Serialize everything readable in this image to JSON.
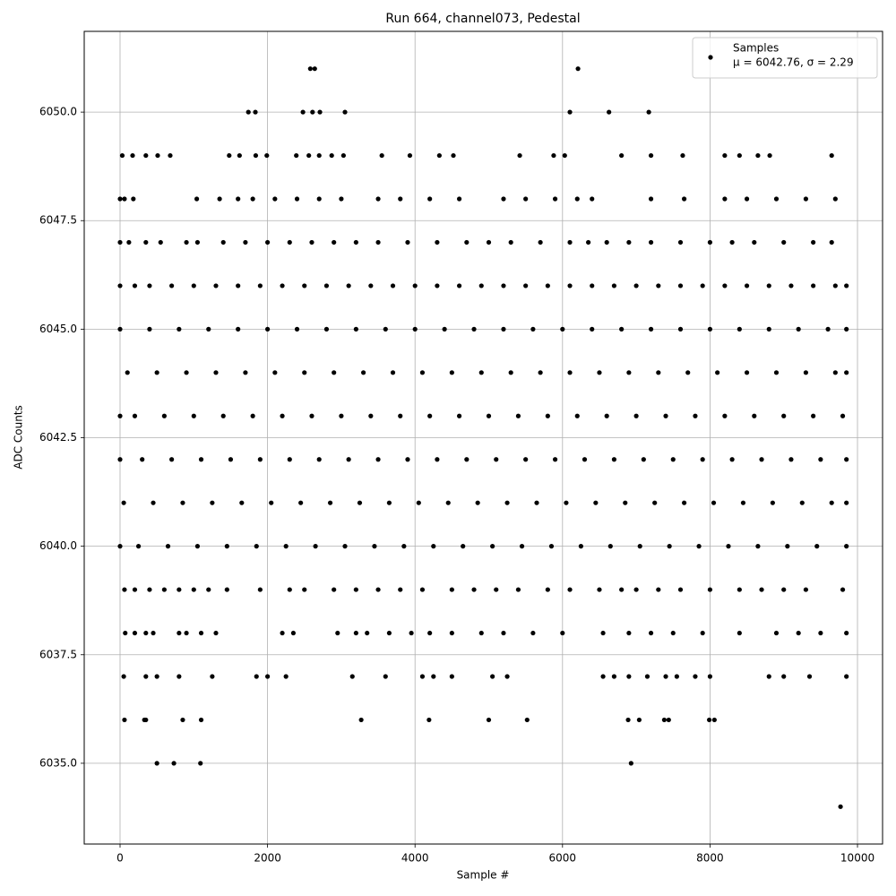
{
  "chart_data": {
    "type": "scatter",
    "title": "Run 664, channel073, Pedestal",
    "x_label": "Sample #",
    "y_label": "ADC Counts",
    "xlim": [
      -486,
      10340
    ],
    "ylim": [
      6033.14,
      6051.86
    ],
    "xticks": [
      0,
      2000,
      4000,
      6000,
      8000,
      10000
    ],
    "yticks": [
      {
        "value": 6035,
        "label": "6035.0"
      },
      {
        "value": 6037.5,
        "label": "6037.5"
      },
      {
        "value": 6040,
        "label": "6040.0"
      },
      {
        "value": 6042.5,
        "label": "6042.5"
      },
      {
        "value": 6045,
        "label": "6045.0"
      },
      {
        "value": 6047.5,
        "label": "6047.5"
      },
      {
        "value": 6050,
        "label": "6050.0"
      }
    ],
    "grid": true,
    "legend": "upper right",
    "legend_note": "μ = 6042.76, σ = 2.29",
    "series": [
      {
        "name": "Samples",
        "color": "#000000",
        "x": [
          2580,
          2640,
          6210,
          1740,
          1835,
          2480,
          2610,
          2710,
          3050,
          6100,
          6630,
          7170,
          30,
          170,
          350,
          510,
          680,
          1480,
          1620,
          1840,
          1990,
          2390,
          2560,
          2700,
          2870,
          3030,
          3550,
          3930,
          4330,
          4520,
          5420,
          5880,
          6030,
          6800,
          7200,
          7630,
          8200,
          8400,
          8650,
          8810,
          9650,
          0,
          60,
          180,
          1040,
          1350,
          1600,
          1800,
          2100,
          2400,
          2700,
          3000,
          3500,
          3800,
          4200,
          4600,
          5200,
          5500,
          5900,
          6200,
          6400,
          7200,
          7650,
          8200,
          8500,
          8900,
          9300,
          9700,
          0,
          120,
          350,
          550,
          900,
          1050,
          1400,
          1700,
          2000,
          2300,
          2600,
          2900,
          3200,
          3500,
          3900,
          4300,
          4700,
          5000,
          5300,
          5700,
          6100,
          6350,
          6600,
          6900,
          7200,
          7600,
          8000,
          8300,
          8600,
          9000,
          9400,
          9650,
          0,
          200,
          400,
          700,
          1000,
          1300,
          1600,
          1900,
          2200,
          2500,
          2800,
          3100,
          3400,
          3700,
          4000,
          4300,
          4600,
          4900,
          5200,
          5500,
          5800,
          6100,
          6400,
          6700,
          7000,
          7300,
          7600,
          7900,
          8200,
          8500,
          8800,
          9100,
          9400,
          9700,
          9850,
          0,
          400,
          800,
          1200,
          1600,
          2000,
          2400,
          2800,
          3200,
          3600,
          4000,
          4400,
          4800,
          5200,
          5600,
          6000,
          6400,
          6800,
          7200,
          7600,
          8000,
          8400,
          8800,
          9200,
          9600,
          9850,
          100,
          500,
          900,
          1300,
          1700,
          2100,
          2500,
          2900,
          3300,
          3700,
          4100,
          4500,
          4900,
          5300,
          5700,
          6100,
          6500,
          6900,
          7300,
          7700,
          8100,
          8500,
          8900,
          9300,
          9700,
          9850,
          0,
          200,
          600,
          1000,
          1400,
          1800,
          2200,
          2600,
          3000,
          3400,
          3800,
          4200,
          4600,
          5000,
          5400,
          5800,
          6200,
          6600,
          7000,
          7400,
          7800,
          8200,
          8600,
          9000,
          9400,
          9800,
          0,
          300,
          700,
          1100,
          1500,
          1900,
          2300,
          2700,
          3100,
          3500,
          3900,
          4300,
          4700,
          5100,
          5500,
          5900,
          6300,
          6700,
          7100,
          7500,
          7900,
          8300,
          8700,
          9100,
          9500,
          9850,
          50,
          450,
          850,
          1250,
          1650,
          2050,
          2450,
          2850,
          3250,
          3650,
          4050,
          4450,
          4850,
          5250,
          5650,
          6050,
          6450,
          6850,
          7250,
          7650,
          8050,
          8450,
          8850,
          9250,
          9650,
          9850,
          0,
          250,
          650,
          1050,
          1450,
          1850,
          2250,
          2650,
          3050,
          3450,
          3850,
          4250,
          4650,
          5050,
          5450,
          5850,
          6250,
          6650,
          7050,
          7450,
          7850,
          8250,
          8650,
          9050,
          9450,
          9850,
          60,
          200,
          400,
          600,
          800,
          1000,
          1200,
          1450,
          1900,
          2300,
          2500,
          2900,
          3200,
          3500,
          3800,
          4100,
          4500,
          4800,
          5100,
          5400,
          5800,
          6100,
          6500,
          6800,
          7000,
          7300,
          7600,
          8000,
          8400,
          8700,
          9000,
          9300,
          9800,
          70,
          200,
          350,
          450,
          800,
          900,
          1100,
          1300,
          2200,
          2350,
          2950,
          3200,
          3350,
          3650,
          3950,
          4200,
          4500,
          4900,
          5200,
          5600,
          6000,
          6550,
          6900,
          7200,
          7500,
          7900,
          8400,
          8900,
          9200,
          9500,
          9850,
          50,
          350,
          500,
          800,
          1250,
          1850,
          2000,
          2250,
          3150,
          3600,
          4100,
          4250,
          4500,
          5050,
          5250,
          6550,
          6700,
          6900,
          7150,
          7400,
          7550,
          7800,
          8000,
          8800,
          9000,
          9350,
          9850,
          60,
          330,
          350,
          850,
          1100,
          3270,
          4190,
          5000,
          5520,
          6890,
          7040,
          7380,
          7440,
          7990,
          8060,
          500,
          730,
          1090,
          6930,
          9770
        ],
        "values": [
          6051,
          6051,
          6051,
          6050,
          6050,
          6050,
          6050,
          6050,
          6050,
          6050,
          6050,
          6050,
          6049,
          6049,
          6049,
          6049,
          6049,
          6049,
          6049,
          6049,
          6049,
          6049,
          6049,
          6049,
          6049,
          6049,
          6049,
          6049,
          6049,
          6049,
          6049,
          6049,
          6049,
          6049,
          6049,
          6049,
          6049,
          6049,
          6049,
          6049,
          6049,
          6048,
          6048,
          6048,
          6048,
          6048,
          6048,
          6048,
          6048,
          6048,
          6048,
          6048,
          6048,
          6048,
          6048,
          6048,
          6048,
          6048,
          6048,
          6048,
          6048,
          6048,
          6048,
          6048,
          6048,
          6048,
          6048,
          6048,
          6047,
          6047,
          6047,
          6047,
          6047,
          6047,
          6047,
          6047,
          6047,
          6047,
          6047,
          6047,
          6047,
          6047,
          6047,
          6047,
          6047,
          6047,
          6047,
          6047,
          6047,
          6047,
          6047,
          6047,
          6047,
          6047,
          6047,
          6047,
          6047,
          6047,
          6047,
          6047,
          6046,
          6046,
          6046,
          6046,
          6046,
          6046,
          6046,
          6046,
          6046,
          6046,
          6046,
          6046,
          6046,
          6046,
          6046,
          6046,
          6046,
          6046,
          6046,
          6046,
          6046,
          6046,
          6046,
          6046,
          6046,
          6046,
          6046,
          6046,
          6046,
          6046,
          6046,
          6046,
          6046,
          6046,
          6046,
          6045,
          6045,
          6045,
          6045,
          6045,
          6045,
          6045,
          6045,
          6045,
          6045,
          6045,
          6045,
          6045,
          6045,
          6045,
          6045,
          6045,
          6045,
          6045,
          6045,
          6045,
          6045,
          6045,
          6045,
          6045,
          6045,
          6044,
          6044,
          6044,
          6044,
          6044,
          6044,
          6044,
          6044,
          6044,
          6044,
          6044,
          6044,
          6044,
          6044,
          6044,
          6044,
          6044,
          6044,
          6044,
          6044,
          6044,
          6044,
          6044,
          6044,
          6044,
          6044,
          6043,
          6043,
          6043,
          6043,
          6043,
          6043,
          6043,
          6043,
          6043,
          6043,
          6043,
          6043,
          6043,
          6043,
          6043,
          6043,
          6043,
          6043,
          6043,
          6043,
          6043,
          6043,
          6043,
          6043,
          6043,
          6043,
          6042,
          6042,
          6042,
          6042,
          6042,
          6042,
          6042,
          6042,
          6042,
          6042,
          6042,
          6042,
          6042,
          6042,
          6042,
          6042,
          6042,
          6042,
          6042,
          6042,
          6042,
          6042,
          6042,
          6042,
          6042,
          6042,
          6041,
          6041,
          6041,
          6041,
          6041,
          6041,
          6041,
          6041,
          6041,
          6041,
          6041,
          6041,
          6041,
          6041,
          6041,
          6041,
          6041,
          6041,
          6041,
          6041,
          6041,
          6041,
          6041,
          6041,
          6041,
          6041,
          6040,
          6040,
          6040,
          6040,
          6040,
          6040,
          6040,
          6040,
          6040,
          6040,
          6040,
          6040,
          6040,
          6040,
          6040,
          6040,
          6040,
          6040,
          6040,
          6040,
          6040,
          6040,
          6040,
          6040,
          6040,
          6040,
          6039,
          6039,
          6039,
          6039,
          6039,
          6039,
          6039,
          6039,
          6039,
          6039,
          6039,
          6039,
          6039,
          6039,
          6039,
          6039,
          6039,
          6039,
          6039,
          6039,
          6039,
          6039,
          6039,
          6039,
          6039,
          6039,
          6039,
          6039,
          6039,
          6039,
          6039,
          6039,
          6039,
          6038,
          6038,
          6038,
          6038,
          6038,
          6038,
          6038,
          6038,
          6038,
          6038,
          6038,
          6038,
          6038,
          6038,
          6038,
          6038,
          6038,
          6038,
          6038,
          6038,
          6038,
          6038,
          6038,
          6038,
          6038,
          6038,
          6038,
          6038,
          6038,
          6038,
          6038,
          6037,
          6037,
          6037,
          6037,
          6037,
          6037,
          6037,
          6037,
          6037,
          6037,
          6037,
          6037,
          6037,
          6037,
          6037,
          6037,
          6037,
          6037,
          6037,
          6037,
          6037,
          6037,
          6037,
          6037,
          6037,
          6037,
          6037,
          6036,
          6036,
          6036,
          6036,
          6036,
          6036,
          6036,
          6036,
          6036,
          6036,
          6036,
          6036,
          6036,
          6036,
          6036,
          6035,
          6035,
          6035,
          6035,
          6034
        ]
      }
    ]
  }
}
